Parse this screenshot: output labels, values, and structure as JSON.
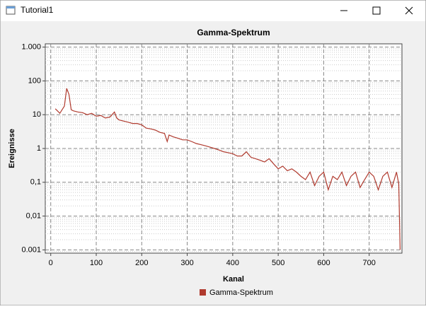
{
  "window": {
    "title": "Tutorial1"
  },
  "chart_data": {
    "type": "line",
    "title": "Gamma-Spektrum",
    "x_label": "Kanal",
    "y_label": "Ereignisse",
    "log_y": true,
    "grid": true,
    "legend": "bottom",
    "xlim": [
      -12,
      772
    ],
    "xticks": [
      0,
      100,
      200,
      300,
      400,
      500,
      600,
      700
    ],
    "ylim": [
      0.0008,
      1250
    ],
    "yticks": [
      {
        "value": 0.001,
        "label": "0.001"
      },
      {
        "value": 0.01,
        "label": "0,01"
      },
      {
        "value": 0.1,
        "label": "0,1"
      },
      1,
      10,
      100,
      {
        "value": 1000,
        "label": "1.000"
      }
    ],
    "x": [
      10,
      20,
      30,
      35,
      40,
      45,
      50,
      60,
      70,
      80,
      90,
      100,
      110,
      120,
      130,
      140,
      145,
      150,
      160,
      170,
      180,
      190,
      200,
      210,
      220,
      230,
      240,
      250,
      256,
      260,
      270,
      280,
      290,
      300,
      310,
      320,
      330,
      340,
      350,
      360,
      370,
      380,
      390,
      400,
      410,
      420,
      430,
      440,
      450,
      460,
      470,
      480,
      490,
      500,
      510,
      520,
      530,
      540,
      550,
      560,
      570,
      580,
      590,
      600,
      610,
      620,
      630,
      640,
      650,
      660,
      670,
      680,
      690,
      700,
      710,
      720,
      730,
      740,
      750,
      760,
      765,
      768
    ],
    "series": [
      {
        "name": "Gamma-Spektrum",
        "color": "#b03a2e",
        "values": [
          15,
          11,
          18,
          60,
          40,
          14,
          13,
          12,
          11.5,
          10,
          11,
          9,
          9.5,
          8,
          8.5,
          12,
          8,
          7,
          6.5,
          6,
          5.5,
          5.5,
          5,
          4,
          3.8,
          3.5,
          3,
          2.8,
          1.6,
          2.5,
          2.2,
          2,
          1.8,
          1.8,
          1.6,
          1.4,
          1.3,
          1.2,
          1.1,
          1,
          0.9,
          0.8,
          0.75,
          0.7,
          0.6,
          0.6,
          0.8,
          0.55,
          0.5,
          0.45,
          0.4,
          0.5,
          0.35,
          0.25,
          0.3,
          0.22,
          0.25,
          0.2,
          0.15,
          0.12,
          0.2,
          0.08,
          0.15,
          0.2,
          0.06,
          0.15,
          0.12,
          0.2,
          0.08,
          0.15,
          0.2,
          0.07,
          0.12,
          0.2,
          0.15,
          0.06,
          0.15,
          0.2,
          0.07,
          0.2,
          0.09,
          0.001
        ]
      }
    ]
  }
}
